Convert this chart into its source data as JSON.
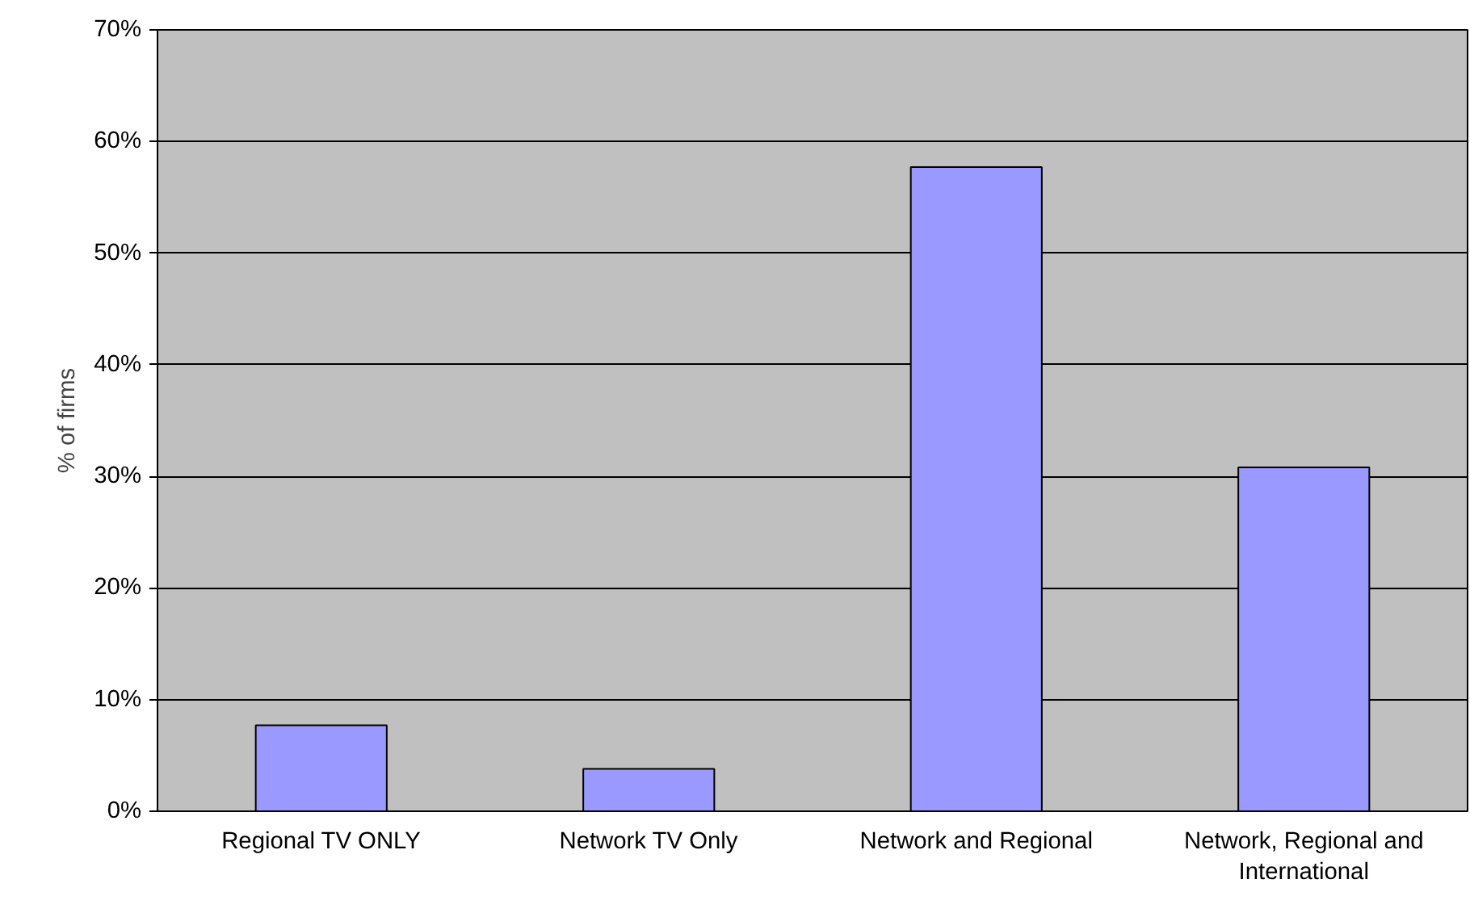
{
  "chart_data": {
    "type": "bar",
    "ylabel": "% of firms",
    "categories": [
      "Regional TV ONLY",
      "Network TV Only",
      "Network and Regional",
      "Network, Regional and\nInternational"
    ],
    "values": [
      7.7,
      3.8,
      57.7,
      30.8
    ],
    "color": "#9999ff",
    "ylim": [
      0,
      70
    ],
    "yticks": [
      {
        "value": 0,
        "label": "0%"
      },
      {
        "value": 10,
        "label": "10%"
      },
      {
        "value": 20,
        "label": "20%"
      },
      {
        "value": 30,
        "label": "30%"
      },
      {
        "value": 40,
        "label": "40%"
      },
      {
        "value": 50,
        "label": "50%"
      },
      {
        "value": 60,
        "label": "60%"
      },
      {
        "value": 70,
        "label": "70%"
      }
    ],
    "grid": "y"
  }
}
